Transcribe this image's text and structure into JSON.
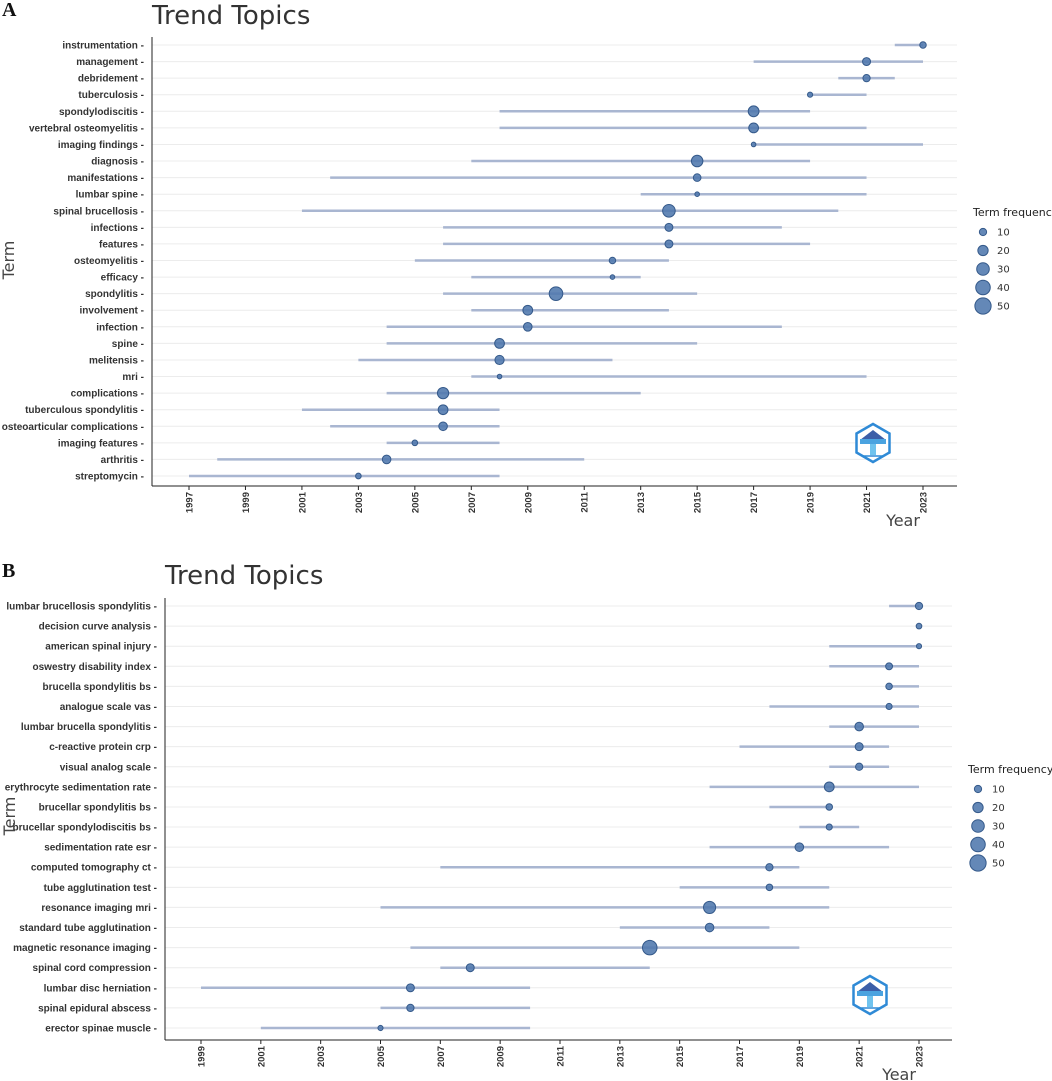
{
  "chart_data": [
    {
      "panel": "A",
      "type": "scatter",
      "title": "Trend Topics",
      "xlabel": "Year",
      "ylabel": "Term",
      "x_ticks": [
        1997,
        1999,
        2001,
        2003,
        2005,
        2007,
        2009,
        2011,
        2013,
        2015,
        2017,
        2019,
        2021,
        2023
      ],
      "xlim": [
        1996,
        2024
      ],
      "legend": {
        "title": "Term frequency",
        "sizes": [
          10,
          20,
          30,
          40,
          50
        ],
        "position": "right"
      },
      "terms": [
        {
          "term": "instrumentation",
          "start": 2022,
          "median": 2023,
          "end": 2023,
          "freq": 8
        },
        {
          "term": "management",
          "start": 2017,
          "median": 2021,
          "end": 2023,
          "freq": 12
        },
        {
          "term": "debridement",
          "start": 2020,
          "median": 2021,
          "end": 2022,
          "freq": 10
        },
        {
          "term": "tuberculosis",
          "start": 2019,
          "median": 2019,
          "end": 2021,
          "freq": 5
        },
        {
          "term": "spondylodiscitis",
          "start": 2008,
          "median": 2017,
          "end": 2019,
          "freq": 22
        },
        {
          "term": "vertebral osteomyelitis",
          "start": 2008,
          "median": 2017,
          "end": 2021,
          "freq": 18
        },
        {
          "term": "imaging findings",
          "start": 2017,
          "median": 2017,
          "end": 2023,
          "freq": 4
        },
        {
          "term": "diagnosis",
          "start": 2007,
          "median": 2015,
          "end": 2019,
          "freq": 25
        },
        {
          "term": "manifestations",
          "start": 2002,
          "median": 2015,
          "end": 2021,
          "freq": 11
        },
        {
          "term": "lumbar spine",
          "start": 2013,
          "median": 2015,
          "end": 2021,
          "freq": 4
        },
        {
          "term": "spinal brucellosis",
          "start": 2001,
          "median": 2014,
          "end": 2020,
          "freq": 30
        },
        {
          "term": "infections",
          "start": 2006,
          "median": 2014,
          "end": 2018,
          "freq": 12
        },
        {
          "term": "features",
          "start": 2006,
          "median": 2014,
          "end": 2019,
          "freq": 12
        },
        {
          "term": "osteomyelitis",
          "start": 2005,
          "median": 2012,
          "end": 2014,
          "freq": 8
        },
        {
          "term": "efficacy",
          "start": 2007,
          "median": 2012,
          "end": 2013,
          "freq": 4
        },
        {
          "term": "spondylitis",
          "start": 2006,
          "median": 2010,
          "end": 2015,
          "freq": 35
        },
        {
          "term": "involvement",
          "start": 2007,
          "median": 2009,
          "end": 2014,
          "freq": 18
        },
        {
          "term": "infection",
          "start": 2004,
          "median": 2009,
          "end": 2018,
          "freq": 14
        },
        {
          "term": "spine",
          "start": 2004,
          "median": 2008,
          "end": 2015,
          "freq": 18
        },
        {
          "term": "melitensis",
          "start": 2003,
          "median": 2008,
          "end": 2012,
          "freq": 16
        },
        {
          "term": "mri",
          "start": 2007,
          "median": 2008,
          "end": 2021,
          "freq": 4
        },
        {
          "term": "complications",
          "start": 2004,
          "median": 2006,
          "end": 2013,
          "freq": 24
        },
        {
          "term": "tuberculous spondylitis",
          "start": 2001,
          "median": 2006,
          "end": 2008,
          "freq": 18
        },
        {
          "term": "osteoarticular complications",
          "start": 2002,
          "median": 2006,
          "end": 2008,
          "freq": 14
        },
        {
          "term": "imaging features",
          "start": 2004,
          "median": 2005,
          "end": 2008,
          "freq": 6
        },
        {
          "term": "arthritis",
          "start": 1998,
          "median": 2004,
          "end": 2011,
          "freq": 14
        },
        {
          "term": "streptomycin",
          "start": 1997,
          "median": 2003,
          "end": 2008,
          "freq": 6
        }
      ]
    },
    {
      "panel": "B",
      "type": "scatter",
      "title": "Trend Topics",
      "xlabel": "Year",
      "ylabel": "Term",
      "x_ticks": [
        1999,
        2001,
        2003,
        2005,
        2007,
        2009,
        2011,
        2013,
        2015,
        2017,
        2019,
        2021,
        2023
      ],
      "xlim": [
        1998,
        2024
      ],
      "legend": {
        "title": "Term frequency",
        "sizes": [
          10,
          20,
          30,
          40,
          50
        ],
        "position": "right"
      },
      "terms": [
        {
          "term": "lumbar brucellosis spondylitis",
          "start": 2022,
          "median": 2023,
          "end": 2023,
          "freq": 10
        },
        {
          "term": "decision curve analysis",
          "start": 2023,
          "median": 2023,
          "end": 2023,
          "freq": 6
        },
        {
          "term": "american spinal injury",
          "start": 2020,
          "median": 2023,
          "end": 2023,
          "freq": 5
        },
        {
          "term": "oswestry disability index",
          "start": 2020,
          "median": 2022,
          "end": 2023,
          "freq": 9
        },
        {
          "term": "brucella spondylitis bs",
          "start": 2022,
          "median": 2022,
          "end": 2023,
          "freq": 8
        },
        {
          "term": "analogue scale vas",
          "start": 2018,
          "median": 2022,
          "end": 2023,
          "freq": 7
        },
        {
          "term": "lumbar brucella spondylitis",
          "start": 2020,
          "median": 2021,
          "end": 2023,
          "freq": 14
        },
        {
          "term": "c-reactive protein crp",
          "start": 2017,
          "median": 2021,
          "end": 2022,
          "freq": 12
        },
        {
          "term": "visual analog scale",
          "start": 2020,
          "median": 2021,
          "end": 2022,
          "freq": 10
        },
        {
          "term": "erythrocyte sedimentation rate",
          "start": 2016,
          "median": 2020,
          "end": 2023,
          "freq": 18
        },
        {
          "term": "brucellar spondylitis bs",
          "start": 2018,
          "median": 2020,
          "end": 2020,
          "freq": 8
        },
        {
          "term": "brucellar spondylodiscitis bs",
          "start": 2019,
          "median": 2020,
          "end": 2021,
          "freq": 7
        },
        {
          "term": "sedimentation rate esr",
          "start": 2016,
          "median": 2019,
          "end": 2022,
          "freq": 14
        },
        {
          "term": "computed tomography ct",
          "start": 2007,
          "median": 2018,
          "end": 2019,
          "freq": 10
        },
        {
          "term": "tube agglutination test",
          "start": 2015,
          "median": 2018,
          "end": 2020,
          "freq": 8
        },
        {
          "term": "resonance imaging mri",
          "start": 2005,
          "median": 2016,
          "end": 2020,
          "freq": 28
        },
        {
          "term": "standard tube agglutination",
          "start": 2013,
          "median": 2016,
          "end": 2018,
          "freq": 14
        },
        {
          "term": "magnetic resonance imaging",
          "start": 2006,
          "median": 2014,
          "end": 2019,
          "freq": 40
        },
        {
          "term": "spinal cord compression",
          "start": 2007,
          "median": 2008,
          "end": 2014,
          "freq": 12
        },
        {
          "term": "lumbar disc herniation",
          "start": 1999,
          "median": 2006,
          "end": 2010,
          "freq": 12
        },
        {
          "term": "spinal epidural abscess",
          "start": 2005,
          "median": 2006,
          "end": 2010,
          "freq": 10
        },
        {
          "term": "erector spinae muscle",
          "start": 2001,
          "median": 2005,
          "end": 2010,
          "freq": 5
        }
      ]
    }
  ],
  "colors": {
    "point": "#4e78ad",
    "range": "#a9b6d1",
    "logo": "#2f8ad6"
  }
}
